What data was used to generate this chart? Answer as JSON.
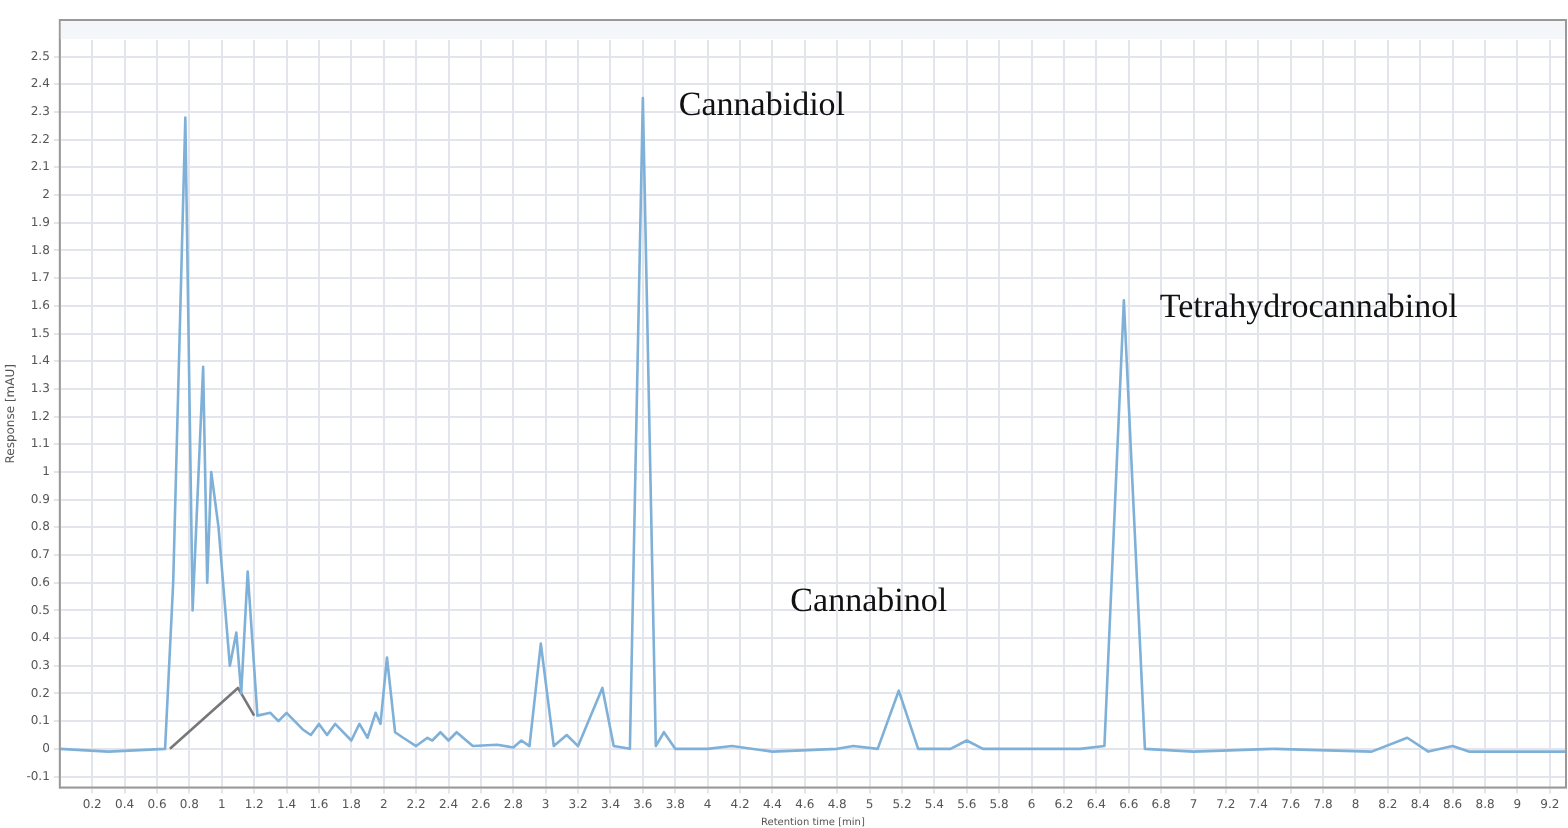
{
  "chart_data": {
    "type": "line",
    "xlabel": "Retention time [min]",
    "ylabel": "Response [mAU]",
    "xlim": [
      0,
      9.3
    ],
    "ylim": [
      -0.14,
      2.56
    ],
    "xticks": [
      0.2,
      0.4,
      0.6,
      0.8,
      1,
      1.2,
      1.4,
      1.6,
      1.8,
      2,
      2.2,
      2.4,
      2.6,
      2.8,
      3,
      3.2,
      3.4,
      3.6,
      3.8,
      4,
      4.2,
      4.4,
      4.6,
      4.8,
      5,
      5.2,
      5.4,
      5.6,
      5.8,
      6,
      6.2,
      6.4,
      6.6,
      6.8,
      7,
      7.2,
      7.4,
      7.6,
      7.8,
      8,
      8.2,
      8.4,
      8.6,
      8.8,
      9,
      9.2
    ],
    "yticks": [
      -0.1,
      0,
      0.1,
      0.2,
      0.3,
      0.4,
      0.5,
      0.6,
      0.7,
      0.8,
      0.9,
      1,
      1.1,
      1.2,
      1.3,
      1.4,
      1.5,
      1.6,
      1.7,
      1.8,
      1.9,
      2,
      2.1,
      2.2,
      2.3,
      2.4,
      2.5
    ],
    "grid": true,
    "marker": "none",
    "line_style": "solid",
    "series": [
      {
        "color": "#7fb0d8",
        "x": [
          0,
          0.3,
          0.65,
          0.7,
          0.775,
          0.82,
          0.885,
          0.91,
          0.935,
          0.98,
          1.05,
          1.09,
          1.12,
          1.16,
          1.22,
          1.3,
          1.35,
          1.4,
          1.5,
          1.55,
          1.6,
          1.65,
          1.7,
          1.8,
          1.85,
          1.9,
          1.95,
          1.98,
          2.02,
          2.07,
          2.12,
          2.2,
          2.27,
          2.3,
          2.35,
          2.4,
          2.45,
          2.55,
          2.7,
          2.8,
          2.85,
          2.9,
          2.97,
          3.05,
          3.13,
          3.2,
          3.35,
          3.42,
          3.52,
          3.6,
          3.68,
          3.73,
          3.8,
          4,
          4.15,
          4.4,
          4.8,
          4.9,
          5.05,
          5.18,
          5.3,
          5.5,
          5.6,
          5.7,
          6.3,
          6.45,
          6.57,
          6.7,
          7,
          7.5,
          8.1,
          8.32,
          8.45,
          8.6,
          8.7,
          9.3
        ],
        "values": [
          0,
          -0.01,
          0,
          0.6,
          2.28,
          0.5,
          1.38,
          0.6,
          1.0,
          0.8,
          0.3,
          0.42,
          0.2,
          0.64,
          0.12,
          0.13,
          0.1,
          0.13,
          0.07,
          0.05,
          0.09,
          0.05,
          0.09,
          0.03,
          0.09,
          0.04,
          0.13,
          0.09,
          0.33,
          0.06,
          0.04,
          0.01,
          0.04,
          0.03,
          0.06,
          0.03,
          0.06,
          0.01,
          0.015,
          0.005,
          0.03,
          0.01,
          0.38,
          0.01,
          0.05,
          0.01,
          0.22,
          0.01,
          0,
          2.35,
          0.01,
          0.06,
          0,
          0,
          0.01,
          -0.01,
          0,
          0.01,
          0,
          0.21,
          0,
          0,
          0.03,
          0,
          0,
          0.01,
          1.62,
          0,
          -0.01,
          0,
          -0.01,
          0.04,
          -0.01,
          0.01,
          -0.01,
          -0.01
        ]
      },
      {
        "color": "#777777",
        "x": [
          0.68,
          1.1,
          1.2
        ],
        "values": [
          0,
          0.22,
          0.12
        ]
      }
    ],
    "annotations": [
      {
        "text": "Cannabidiol",
        "x": 3.6,
        "y": 2.35
      },
      {
        "text": "Cannabinol",
        "x": 5.18,
        "y": 0.21
      },
      {
        "text": "Tetrahydrocannabinol",
        "x": 6.57,
        "y": 1.62
      }
    ]
  }
}
